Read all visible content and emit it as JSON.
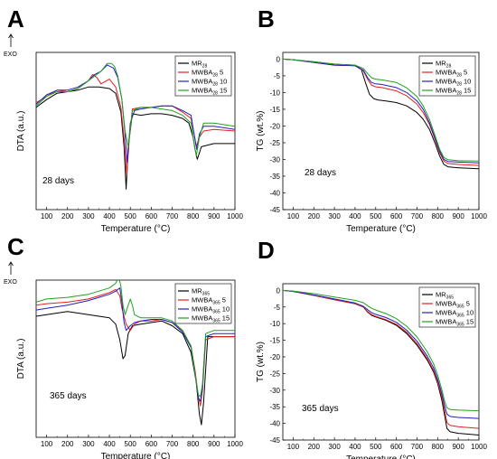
{
  "chart_data": [
    {
      "panel": "A",
      "type": "line",
      "xlabel": "Temperature (°C)",
      "ylabel": "DTA (a.u.)",
      "exo_label": "EXO",
      "annotation": "28 days",
      "xlim": [
        50,
        1000
      ],
      "xticks": [
        100,
        200,
        300,
        400,
        500,
        600,
        700,
        800,
        900,
        1000
      ],
      "ylim": [
        0,
        100
      ],
      "legend_position": "top-right",
      "series": [
        {
          "name": "MR",
          "sub": "28",
          "suffix": "",
          "color": "#000000",
          "x": [
            50,
            100,
            150,
            200,
            250,
            300,
            350,
            400,
            430,
            455,
            470,
            480,
            490,
            510,
            550,
            600,
            650,
            700,
            750,
            780,
            800,
            810,
            820,
            840,
            900,
            1000
          ],
          "y": [
            65,
            70,
            74,
            75,
            76,
            78,
            78,
            77,
            74,
            62,
            40,
            13,
            40,
            61,
            60,
            61,
            61,
            60,
            58,
            55,
            46,
            38,
            32,
            40,
            42,
            42
          ]
        },
        {
          "name": "MWBA",
          "sub": "28",
          "suffix": " 5",
          "color": "#e02020",
          "x": [
            50,
            100,
            150,
            200,
            250,
            300,
            320,
            340,
            360,
            400,
            430,
            455,
            470,
            483,
            495,
            510,
            550,
            600,
            650,
            700,
            750,
            790,
            805,
            815,
            830,
            850,
            900,
            1000
          ],
          "y": [
            68,
            72,
            76,
            75,
            77,
            82,
            86,
            84,
            80,
            83,
            78,
            65,
            45,
            22,
            45,
            64,
            65,
            65,
            66,
            66,
            62,
            58,
            48,
            40,
            46,
            50,
            51,
            50
          ]
        },
        {
          "name": "MWBA",
          "sub": "28",
          "suffix": " 10",
          "color": "#2020c0",
          "x": [
            50,
            100,
            150,
            200,
            250,
            300,
            330,
            360,
            390,
            420,
            440,
            460,
            475,
            485,
            500,
            520,
            550,
            600,
            650,
            700,
            750,
            790,
            805,
            818,
            830,
            850,
            900,
            1000
          ],
          "y": [
            67,
            73,
            76,
            76,
            78,
            82,
            86,
            88,
            92,
            90,
            84,
            70,
            48,
            30,
            55,
            63,
            64,
            65,
            66,
            66,
            63,
            60,
            48,
            38,
            48,
            53,
            53,
            51
          ]
        },
        {
          "name": "MWBA",
          "sub": "28",
          "suffix": " 15",
          "color": "#20a020",
          "x": [
            50,
            100,
            150,
            200,
            250,
            300,
            330,
            360,
            390,
            410,
            425,
            440,
            460,
            475,
            490,
            510,
            550,
            600,
            650,
            700,
            750,
            790,
            805,
            815,
            830,
            850,
            900,
            1000
          ],
          "y": [
            66,
            72,
            75,
            75,
            77,
            82,
            85,
            88,
            93,
            93,
            91,
            85,
            70,
            50,
            40,
            63,
            65,
            65,
            64,
            63,
            60,
            55,
            42,
            34,
            46,
            55,
            55,
            53
          ]
        }
      ]
    },
    {
      "panel": "B",
      "type": "line",
      "xlabel": "Temperature (°C)",
      "ylabel": "TG (wt.%)",
      "annotation": "28 days",
      "xlim": [
        50,
        1000
      ],
      "xticks": [
        100,
        200,
        300,
        400,
        500,
        600,
        700,
        800,
        900,
        1000
      ],
      "ylim": [
        -45,
        2
      ],
      "yticks": [
        0,
        -5,
        -10,
        -15,
        -20,
        -25,
        -30,
        -35,
        -40,
        -45
      ],
      "legend_position": "top-right",
      "series": [
        {
          "name": "MR",
          "sub": "28",
          "suffix": "",
          "color": "#000000",
          "x": [
            50,
            100,
            200,
            300,
            400,
            430,
            450,
            470,
            490,
            510,
            550,
            600,
            650,
            700,
            730,
            760,
            790,
            810,
            830,
            850,
            900,
            1000
          ],
          "y": [
            0,
            -0.2,
            -0.8,
            -1.5,
            -1.8,
            -3,
            -7,
            -10.5,
            -11.8,
            -12.2,
            -12.5,
            -13,
            -14,
            -16,
            -18,
            -21,
            -25.5,
            -29,
            -31.5,
            -32.2,
            -32.5,
            -32.8
          ]
        },
        {
          "name": "MWBA",
          "sub": "28",
          "suffix": " 5",
          "color": "#e02020",
          "x": [
            50,
            100,
            200,
            300,
            400,
            440,
            460,
            480,
            500,
            530,
            600,
            650,
            700,
            730,
            760,
            790,
            810,
            830,
            850,
            900,
            1000
          ],
          "y": [
            0,
            -0.2,
            -1,
            -1.8,
            -2,
            -3.5,
            -6,
            -7.8,
            -8.3,
            -8.5,
            -9.5,
            -11,
            -13.5,
            -16,
            -19.5,
            -24.5,
            -28,
            -30.5,
            -31.2,
            -31.5,
            -31.8
          ]
        },
        {
          "name": "MWBA",
          "sub": "28",
          "suffix": " 10",
          "color": "#2020c0",
          "x": [
            50,
            100,
            200,
            300,
            400,
            440,
            460,
            480,
            500,
            530,
            600,
            650,
            700,
            730,
            760,
            790,
            810,
            830,
            850,
            900,
            1000
          ],
          "y": [
            0,
            -0.2,
            -1,
            -1.8,
            -2,
            -3.3,
            -5.5,
            -7,
            -7.4,
            -7.6,
            -8.5,
            -10,
            -12.5,
            -15,
            -19,
            -24,
            -27.5,
            -30,
            -30.6,
            -30.8,
            -31
          ]
        },
        {
          "name": "MWBA",
          "sub": "28",
          "suffix": " 15",
          "color": "#20a020",
          "x": [
            50,
            100,
            200,
            300,
            400,
            440,
            460,
            480,
            500,
            530,
            600,
            650,
            700,
            730,
            760,
            790,
            810,
            830,
            850,
            900,
            1000
          ],
          "y": [
            0,
            -0.2,
            -0.8,
            -1.5,
            -1.8,
            -2.8,
            -4.3,
            -5.6,
            -6,
            -6.2,
            -7,
            -8.6,
            -11.2,
            -14,
            -18,
            -23.3,
            -27,
            -29.4,
            -30.1,
            -30.4,
            -30.5
          ]
        }
      ]
    },
    {
      "panel": "C",
      "type": "line",
      "xlabel": "Temperature (°C)",
      "ylabel": "DTA (a.u.)",
      "exo_label": "EXO",
      "annotation": "365 days",
      "xlim": [
        50,
        1000
      ],
      "xticks": [
        100,
        200,
        300,
        400,
        500,
        600,
        700,
        800,
        900,
        1000
      ],
      "ylim": [
        0,
        100
      ],
      "legend_position": "top-right",
      "series": [
        {
          "name": "MR",
          "sub": "365",
          "suffix": "",
          "color": "#000000",
          "x": [
            50,
            100,
            200,
            300,
            350,
            400,
            430,
            450,
            465,
            475,
            490,
            510,
            550,
            600,
            650,
            700,
            750,
            790,
            815,
            830,
            840,
            850,
            870,
            900,
            1000
          ],
          "y": [
            77,
            78,
            80,
            78,
            77,
            76,
            72,
            62,
            50,
            52,
            66,
            71,
            72,
            73,
            74,
            71,
            66,
            54,
            35,
            15,
            8,
            22,
            64,
            64,
            64
          ]
        },
        {
          "name": "MWBA",
          "sub": "365",
          "suffix": " 5",
          "color": "#e02020",
          "x": [
            50,
            100,
            200,
            300,
            350,
            400,
            430,
            450,
            460,
            480,
            500,
            520,
            550,
            600,
            650,
            700,
            750,
            790,
            810,
            825,
            835,
            845,
            860,
            900,
            1000
          ],
          "y": [
            84,
            85,
            86,
            88,
            90,
            92,
            94,
            90,
            82,
            72,
            68,
            72,
            74,
            74,
            75,
            73,
            68,
            58,
            42,
            26,
            20,
            30,
            62,
            64,
            64
          ]
        },
        {
          "name": "MWBA",
          "sub": "365",
          "suffix": " 10",
          "color": "#2020c0",
          "x": [
            50,
            100,
            200,
            300,
            350,
            400,
            430,
            450,
            460,
            470,
            480,
            500,
            520,
            550,
            600,
            650,
            700,
            750,
            790,
            810,
            825,
            835,
            845,
            860,
            900,
            1000
          ],
          "y": [
            81,
            82,
            84,
            87,
            89,
            91,
            93,
            95,
            86,
            73,
            68,
            71,
            73,
            74,
            75,
            75,
            73,
            67,
            57,
            40,
            25,
            23,
            32,
            64,
            66,
            66
          ]
        },
        {
          "name": "MWBA",
          "sub": "365",
          "suffix": " 15",
          "color": "#20a020",
          "x": [
            50,
            100,
            200,
            300,
            350,
            400,
            430,
            445,
            455,
            465,
            475,
            490,
            500,
            510,
            520,
            550,
            600,
            650,
            700,
            750,
            790,
            810,
            825,
            835,
            845,
            860,
            900,
            1000
          ],
          "y": [
            86,
            88,
            89,
            91,
            93,
            95,
            98,
            102,
            96,
            84,
            78,
            84,
            88,
            84,
            78,
            76,
            76,
            76,
            74,
            68,
            58,
            40,
            27,
            26,
            34,
            66,
            68,
            68
          ]
        }
      ]
    },
    {
      "panel": "D",
      "type": "line",
      "xlabel": "Temperature (°C)",
      "ylabel": "TG (wt.%)",
      "annotation": "365 days",
      "xlim": [
        50,
        1000
      ],
      "xticks": [
        100,
        200,
        300,
        400,
        500,
        600,
        700,
        800,
        900,
        1000
      ],
      "ylim": [
        -45,
        2
      ],
      "yticks": [
        0,
        -5,
        -10,
        -15,
        -20,
        -25,
        -30,
        -35,
        -40,
        -45
      ],
      "legend_position": "top-right",
      "series": [
        {
          "name": "MR",
          "sub": "365",
          "suffix": "",
          "color": "#000000",
          "x": [
            50,
            100,
            200,
            300,
            400,
            440,
            460,
            480,
            500,
            550,
            600,
            650,
            700,
            750,
            780,
            800,
            820,
            835,
            845,
            860,
            900,
            1000
          ],
          "y": [
            0,
            -0.3,
            -1.5,
            -2.8,
            -4,
            -5,
            -6.5,
            -7.5,
            -8,
            -9,
            -10.5,
            -13,
            -16.5,
            -21,
            -24.5,
            -28,
            -33,
            -38,
            -41.5,
            -42.5,
            -43,
            -43.5
          ]
        },
        {
          "name": "MWBA",
          "sub": "365",
          "suffix": " 5",
          "color": "#e02020",
          "x": [
            50,
            100,
            200,
            300,
            400,
            440,
            460,
            480,
            500,
            550,
            600,
            650,
            700,
            750,
            780,
            800,
            820,
            835,
            845,
            860,
            900,
            1000
          ],
          "y": [
            0,
            -0.3,
            -1.5,
            -2.8,
            -4,
            -5,
            -6.3,
            -7.3,
            -7.8,
            -8.8,
            -10.2,
            -12.6,
            -16,
            -20.5,
            -24,
            -27.5,
            -32,
            -36.5,
            -39.7,
            -40.6,
            -41,
            -41.5
          ]
        },
        {
          "name": "MWBA",
          "sub": "365",
          "suffix": " 10",
          "color": "#2020c0",
          "x": [
            50,
            100,
            200,
            300,
            400,
            440,
            460,
            480,
            500,
            550,
            600,
            650,
            700,
            750,
            780,
            800,
            820,
            835,
            845,
            860,
            900,
            1000
          ],
          "y": [
            0,
            -0.3,
            -1.4,
            -2.6,
            -3.8,
            -4.8,
            -5.8,
            -6.7,
            -7.2,
            -8.2,
            -9.6,
            -12,
            -15.3,
            -19.8,
            -23.2,
            -26.7,
            -31,
            -35,
            -37.2,
            -37.9,
            -38.2,
            -38.5
          ]
        },
        {
          "name": "MWBA",
          "sub": "365",
          "suffix": " 15",
          "color": "#20a020",
          "x": [
            50,
            100,
            200,
            300,
            400,
            440,
            460,
            480,
            500,
            550,
            600,
            650,
            700,
            750,
            780,
            800,
            820,
            835,
            845,
            860,
            900,
            1000
          ],
          "y": [
            0,
            -0.2,
            -1,
            -2,
            -3,
            -3.7,
            -4.6,
            -5.4,
            -5.9,
            -7,
            -8.5,
            -10.8,
            -14,
            -18.5,
            -22,
            -25.5,
            -29.8,
            -33.6,
            -35.3,
            -35.8,
            -36,
            -36.2
          ]
        }
      ]
    }
  ]
}
